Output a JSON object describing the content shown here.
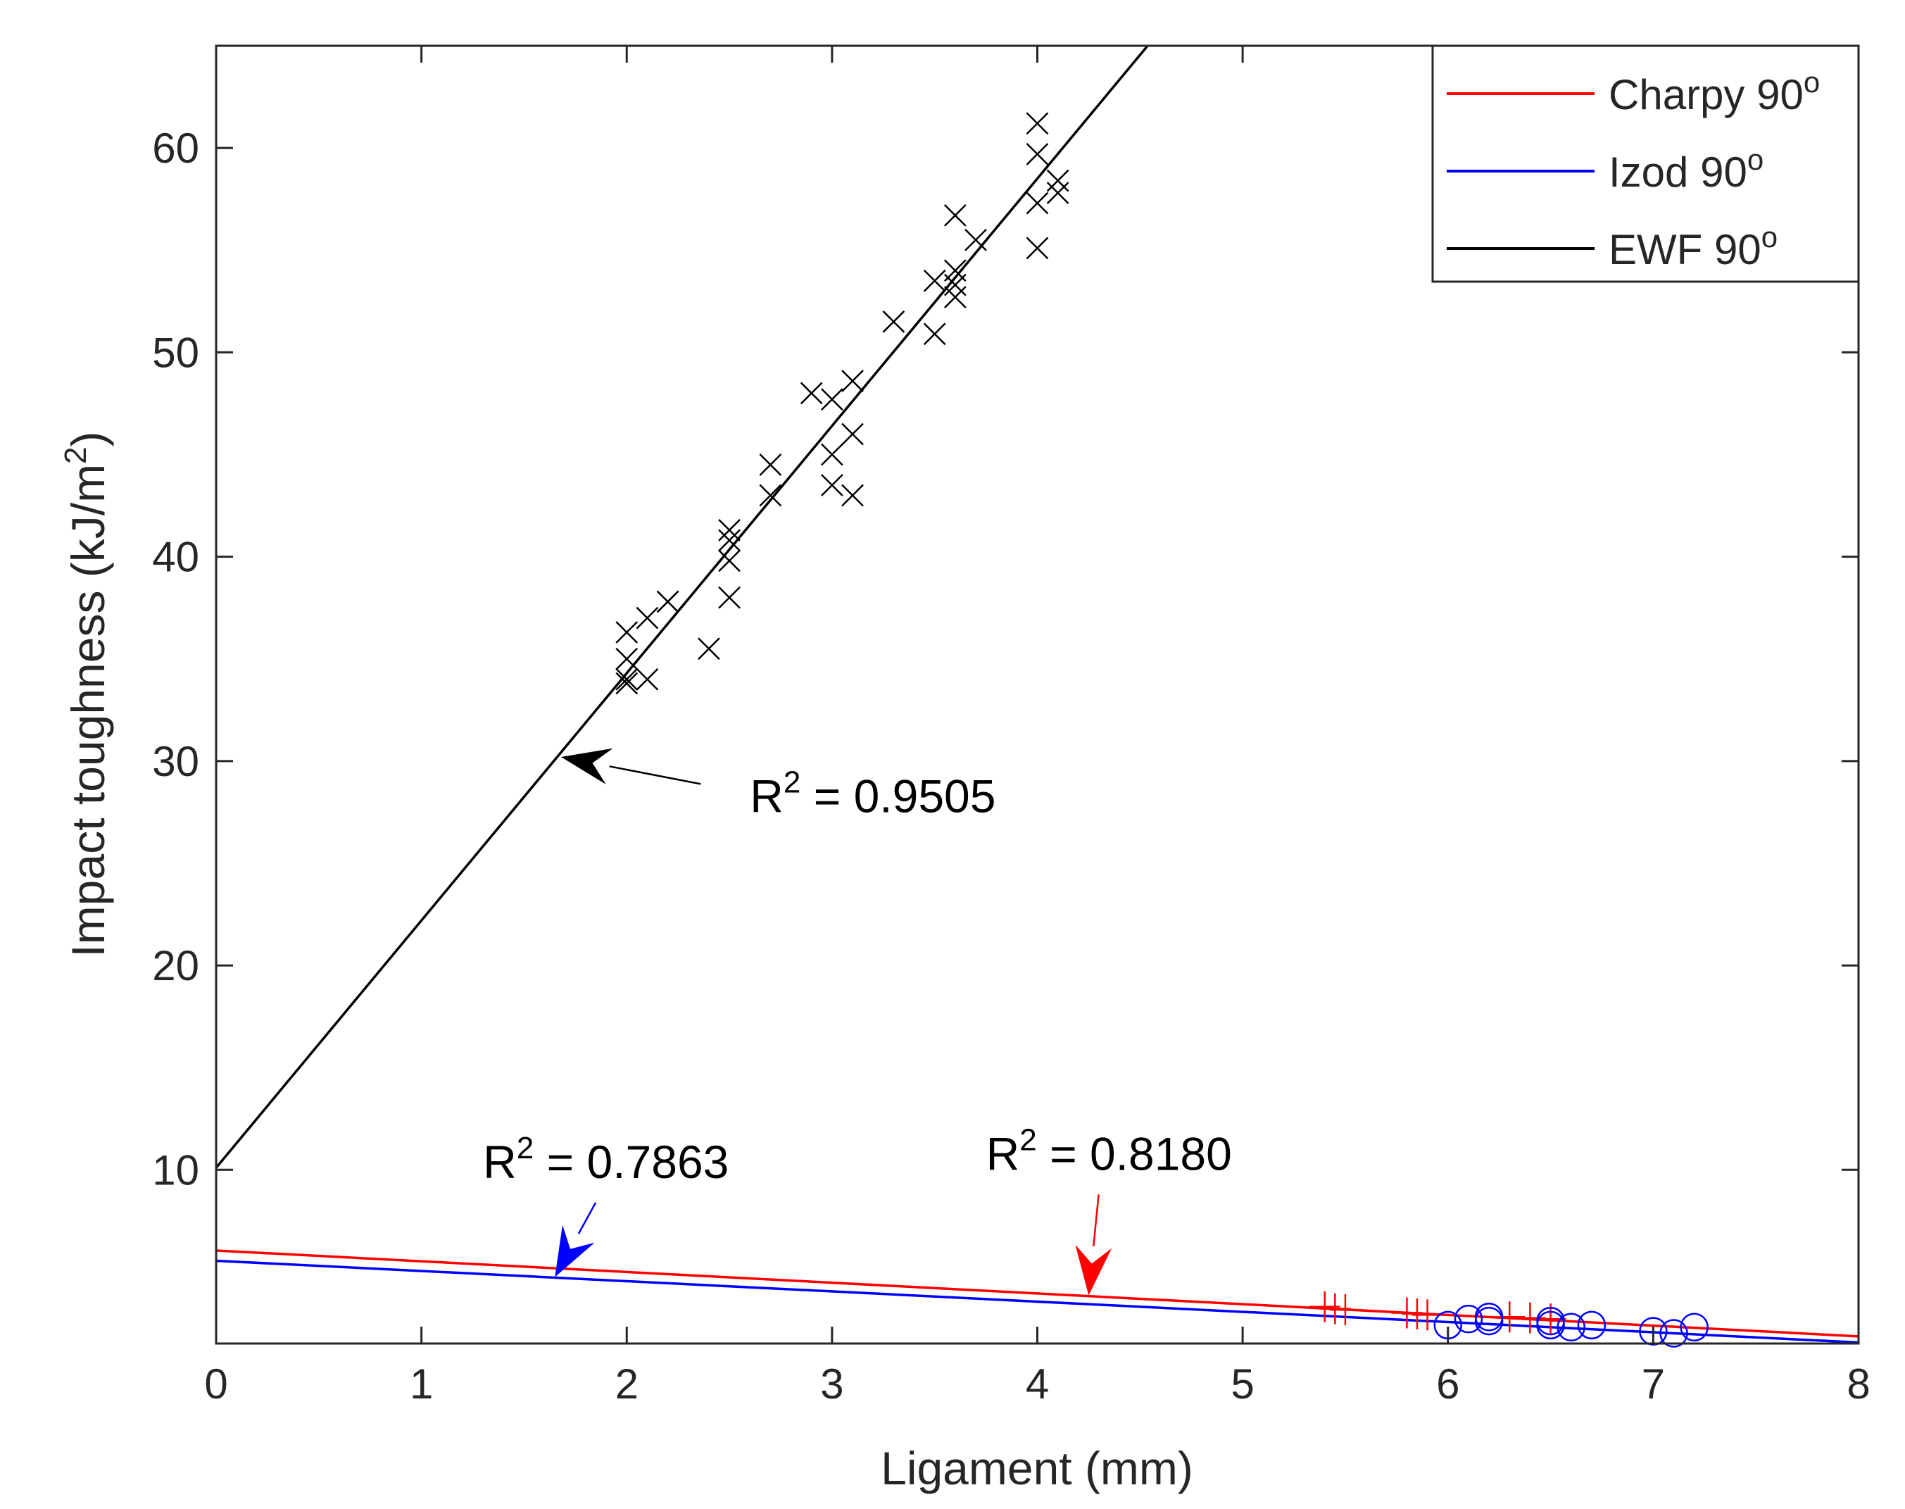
{
  "chart_data": {
    "type": "scatter",
    "title": "",
    "xlabel": "Ligament (mm)",
    "ylabel": {
      "main": "Impact toughness (kJ/m",
      "sup": "2",
      "end": ")"
    },
    "xlim": [
      0,
      8
    ],
    "ylim": [
      1.5,
      65
    ],
    "xticks": [
      0,
      1,
      2,
      3,
      4,
      5,
      6,
      7,
      8
    ],
    "yticks": [
      10,
      20,
      30,
      40,
      50,
      60
    ],
    "grid": false,
    "legend_position": "top-right",
    "legend": [
      {
        "id": "charpy",
        "text": "Charpy 90",
        "sup": "o",
        "color": "#ff0000"
      },
      {
        "id": "izod",
        "text": "Izod 90",
        "sup": "o",
        "color": "#0000ff"
      },
      {
        "id": "ewf",
        "text": "EWF 90",
        "sup": "o",
        "color": "#000000"
      }
    ],
    "series": [
      {
        "name": "EWF 90o",
        "color": "#000000",
        "marker": "x",
        "fit": {
          "intercept": 10.1,
          "slope": 12.1,
          "r2_text": "0.9505"
        },
        "points": [
          [
            2.0,
            36.3
          ],
          [
            2.0,
            35.0
          ],
          [
            2.0,
            34.0
          ],
          [
            2.0,
            33.8
          ],
          [
            2.1,
            37.0
          ],
          [
            2.1,
            34.0
          ],
          [
            2.2,
            37.8
          ],
          [
            2.4,
            35.5
          ],
          [
            2.5,
            41.3
          ],
          [
            2.5,
            40.8
          ],
          [
            2.5,
            39.8
          ],
          [
            2.5,
            38.0
          ],
          [
            2.7,
            44.5
          ],
          [
            2.7,
            43.0
          ],
          [
            2.9,
            48.0
          ],
          [
            3.0,
            47.7
          ],
          [
            3.0,
            45.0
          ],
          [
            3.0,
            43.5
          ],
          [
            3.1,
            48.6
          ],
          [
            3.1,
            46.0
          ],
          [
            3.1,
            43.0
          ],
          [
            3.3,
            51.5
          ],
          [
            3.5,
            53.5
          ],
          [
            3.5,
            50.9
          ],
          [
            3.6,
            56.7
          ],
          [
            3.6,
            54.0
          ],
          [
            3.6,
            53.3
          ],
          [
            3.6,
            52.7
          ],
          [
            3.7,
            55.5
          ],
          [
            4.0,
            61.2
          ],
          [
            4.0,
            59.7
          ],
          [
            4.0,
            57.3
          ],
          [
            4.0,
            55.1
          ],
          [
            4.1,
            58.4
          ],
          [
            4.1,
            57.8
          ]
        ]
      },
      {
        "name": "Charpy 90o",
        "color": "#ff0000",
        "marker": "+",
        "fit": {
          "intercept": 6.05,
          "slope": -0.525,
          "r2_text": "0.8180"
        },
        "points": [
          [
            5.4,
            3.3
          ],
          [
            5.45,
            3.2
          ],
          [
            5.5,
            3.15
          ],
          [
            5.8,
            3.0
          ],
          [
            5.85,
            2.95
          ],
          [
            5.9,
            2.9
          ],
          [
            6.3,
            2.8
          ],
          [
            6.4,
            2.75
          ],
          [
            6.5,
            2.7
          ]
        ]
      },
      {
        "name": "Izod 90o",
        "color": "#0000ff",
        "marker": "o",
        "fit": {
          "intercept": 5.55,
          "slope": -0.5,
          "r2_text": "0.7863"
        },
        "points": [
          [
            6.0,
            2.4
          ],
          [
            6.1,
            2.7
          ],
          [
            6.2,
            2.8
          ],
          [
            6.2,
            2.6
          ],
          [
            6.5,
            2.6
          ],
          [
            6.5,
            2.4
          ],
          [
            6.6,
            2.3
          ],
          [
            6.7,
            2.4
          ],
          [
            7.0,
            2.1
          ],
          [
            7.1,
            2.0
          ],
          [
            7.2,
            2.3
          ]
        ]
      }
    ],
    "annotations": [
      {
        "id": "ewf",
        "label": "R",
        "sup": "2",
        "rest": " = 0.9505",
        "color": "#000000",
        "target": [
          1.68,
          30.2
        ],
        "text_at": [
          2.6,
          27.5
        ]
      },
      {
        "id": "izod",
        "label": "R",
        "sup": "2",
        "rest": " = 0.7863",
        "color": "#0000ff",
        "target": [
          1.65,
          4.75
        ],
        "text_at": [
          1.3,
          9.6
        ]
      },
      {
        "id": "charpy",
        "label": "R",
        "sup": "2",
        "rest": " = 0.8180",
        "color": "#ff0000",
        "target": [
          4.25,
          3.85
        ],
        "text_at": [
          3.75,
          10.0
        ]
      }
    ]
  }
}
